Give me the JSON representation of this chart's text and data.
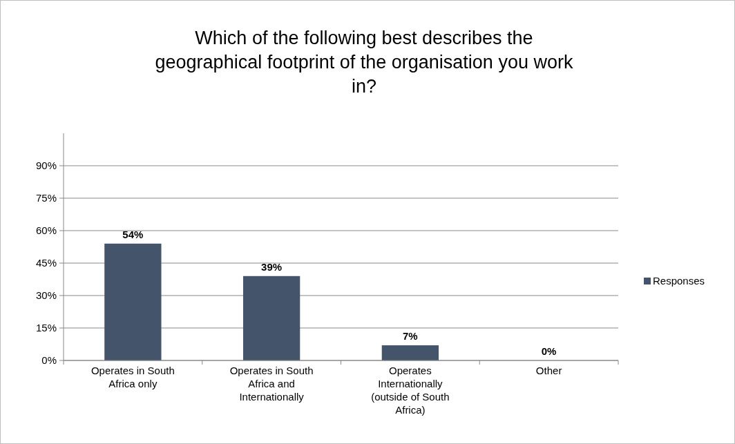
{
  "chart_data": {
    "type": "bar",
    "title": "Which of the following best describes the geographical footprint of the organisation you work in?",
    "categories": [
      "Operates in South Africa only",
      "Operates in South Africa and Internationally",
      "Operates Internationally (outside of South Africa)",
      "Other"
    ],
    "series": [
      {
        "name": "Responses",
        "color": "#44546a",
        "values": [
          54,
          39,
          7,
          0
        ],
        "value_labels": [
          "54%",
          "39%",
          "7%",
          "0%"
        ]
      }
    ],
    "ylim": [
      0,
      105
    ],
    "yticks": [
      {
        "value": 0,
        "label": "0%"
      },
      {
        "value": 15,
        "label": "15%"
      },
      {
        "value": 30,
        "label": "30%"
      },
      {
        "value": 45,
        "label": "45%"
      },
      {
        "value": 60,
        "label": "60%"
      },
      {
        "value": 75,
        "label": "75%"
      },
      {
        "value": 90,
        "label": "90%"
      }
    ],
    "grid": "y",
    "legend": "right"
  }
}
